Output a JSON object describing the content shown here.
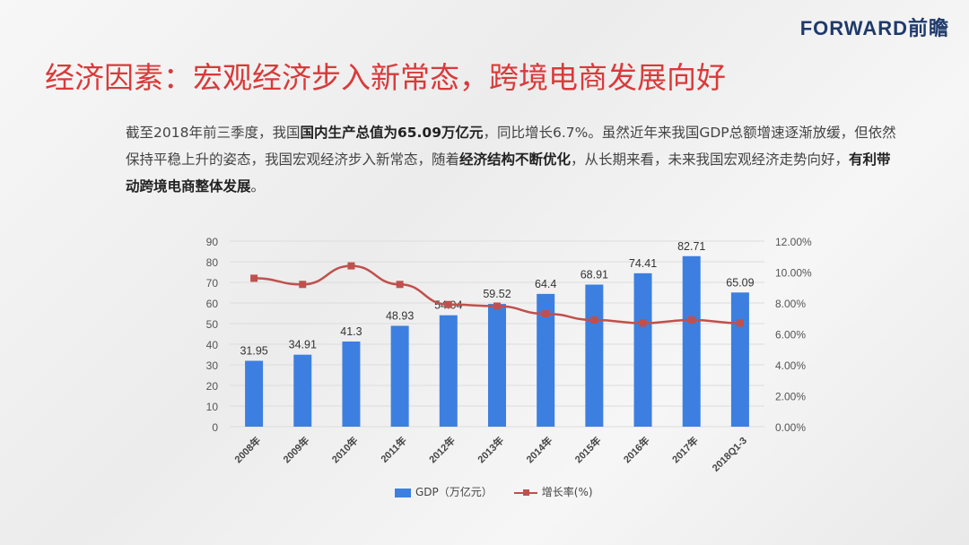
{
  "header": {
    "logo": "FORWARD前瞻",
    "title": "经济因素：宏观经济步入新常态，跨境电商发展向好"
  },
  "paragraph": {
    "p1": "截至2018年前三季度，我国",
    "b1": "国内生产总值为65.09万亿元",
    "p2": "，同比增长6.7%。虽然近年来我国GDP总额增速逐渐放缓，但依然保持平稳上升的姿态，我国宏观经济步入新常态，随着",
    "b2": "经济结构不断优化",
    "p3": "，从长期来看，未来我国宏观经济走势向好，",
    "b3": "有利带动跨境电商整体发展",
    "p4": "。"
  },
  "chart_data": {
    "type": "bar+line",
    "categories": [
      "2008年",
      "2009年",
      "2010年",
      "2011年",
      "2012年",
      "2013年",
      "2014年",
      "2015年",
      "2016年",
      "2017年",
      "2018Q1-3"
    ],
    "series": [
      {
        "name": "GDP（万亿元）",
        "type": "bar",
        "axis": "left",
        "color": "#3d7fe0",
        "values": [
          31.95,
          34.91,
          41.3,
          48.93,
          54.04,
          59.52,
          64.4,
          68.91,
          74.41,
          82.71,
          65.09
        ],
        "labels": [
          "31.95",
          "34.91",
          "41.3",
          "48.93",
          "54.04",
          "59.52",
          "64.4",
          "68.91",
          "74.41",
          "82.71",
          "65.09"
        ]
      },
      {
        "name": "增长率(%)",
        "type": "line",
        "axis": "right",
        "color": "#c0504d",
        "values": [
          9.6,
          9.2,
          10.4,
          9.2,
          7.9,
          7.8,
          7.3,
          6.9,
          6.7,
          6.9,
          6.7
        ]
      }
    ],
    "left_axis": {
      "range": [
        0,
        90
      ],
      "ticks": [
        "0",
        "10",
        "20",
        "30",
        "40",
        "50",
        "60",
        "70",
        "80",
        "90"
      ]
    },
    "right_axis": {
      "range": [
        0,
        12
      ],
      "ticks": [
        "0.00%",
        "2.00%",
        "4.00%",
        "6.00%",
        "8.00%",
        "10.00%",
        "12.00%"
      ]
    },
    "legend": "bottom"
  }
}
